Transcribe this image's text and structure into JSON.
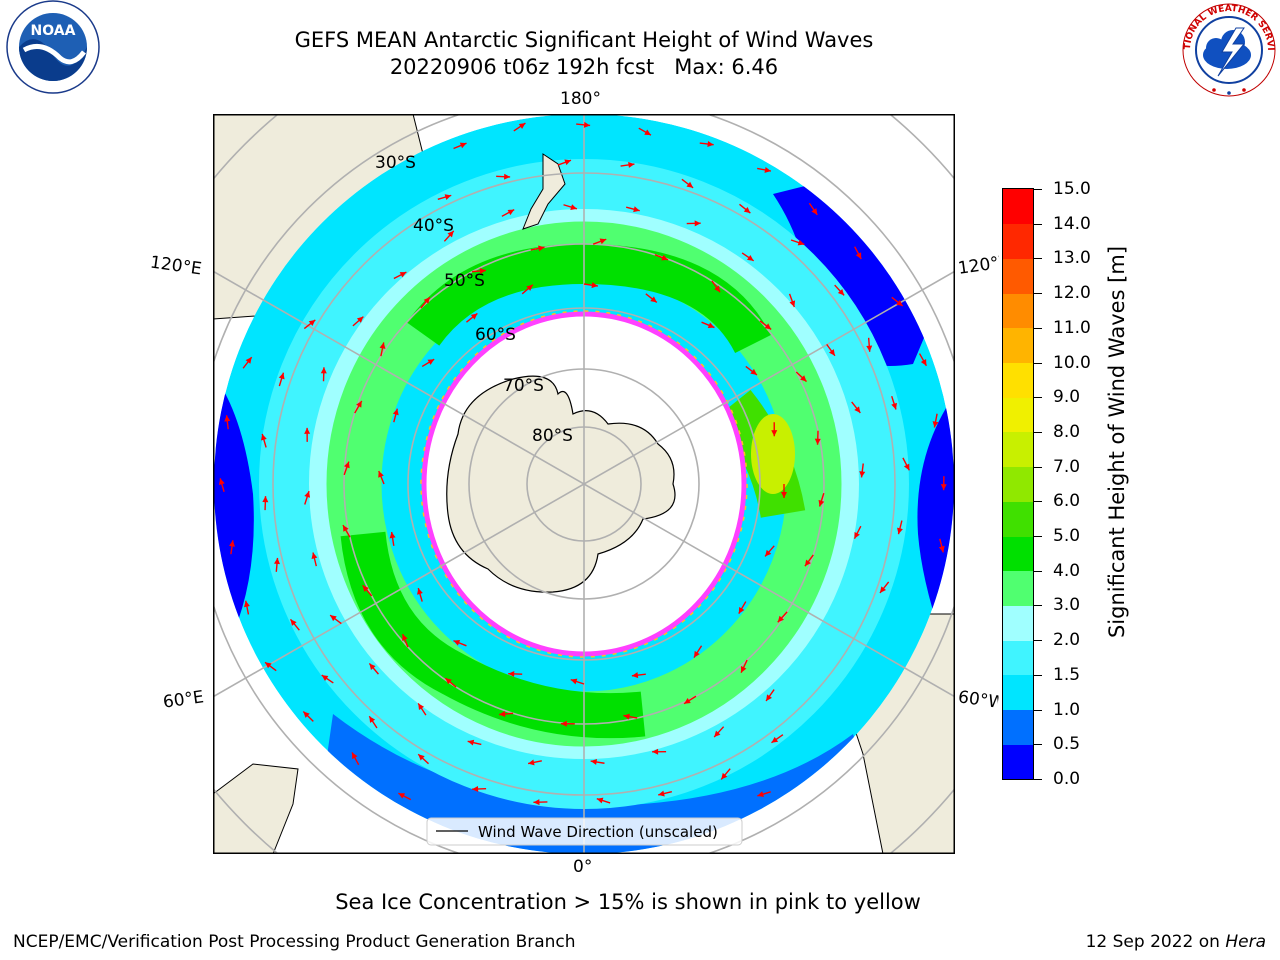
{
  "title": {
    "line1": "GEFS MEAN Antarctic Significant Height of Wind Waves",
    "line2": "20220906 t06z 192h fcst   Max: 6.46"
  },
  "logos": {
    "left": "noaa-logo",
    "left_text": "NOAA",
    "right": "national-weather-service-logo",
    "right_text": "NATIONAL WEATHER SERVICE"
  },
  "map": {
    "projection": "south-polar-stereographic",
    "longitude_labels": {
      "top": "180°",
      "bottom": "0°",
      "upper_left": "120°E",
      "upper_right": "120°W",
      "lower_left": "60°E",
      "lower_right": "60°W"
    },
    "latitude_labels": [
      "30°S",
      "40°S",
      "50°S",
      "60°S",
      "70°S",
      "80°S"
    ],
    "legend_label": "Wind Wave Direction (unscaled)",
    "colors": {
      "land": "#efecdc",
      "ice_edge": "#ff40ff",
      "ice_edge_yellow": "#ffc020",
      "arrow": "#ff0000",
      "grid": "#b0b0b0"
    }
  },
  "colorbar": {
    "label": "Significant Height of Wind Waves [m]",
    "ticks": [
      "0.0",
      "0.5",
      "1.0",
      "1.5",
      "2.0",
      "3.0",
      "4.0",
      "5.0",
      "6.0",
      "7.0",
      "8.0",
      "9.0",
      "10.0",
      "11.0",
      "12.0",
      "13.0",
      "14.0",
      "15.0"
    ],
    "colors": [
      "#0000ff",
      "#0070ff",
      "#00e5ff",
      "#40f4ff",
      "#a0ffff",
      "#50ff70",
      "#00e000",
      "#40e000",
      "#90e800",
      "#c8f000",
      "#f0f000",
      "#ffe000",
      "#ffb400",
      "#ff8c00",
      "#ff5a00",
      "#ff2800",
      "#ff0000"
    ]
  },
  "caption": "Sea Ice Concentration > 15% is shown in pink to yellow",
  "footer": {
    "left": "NCEP/EMC/Verification Post Processing Product Generation Branch",
    "right_date": "12 Sep 2022 on ",
    "right_host": "Hera"
  }
}
